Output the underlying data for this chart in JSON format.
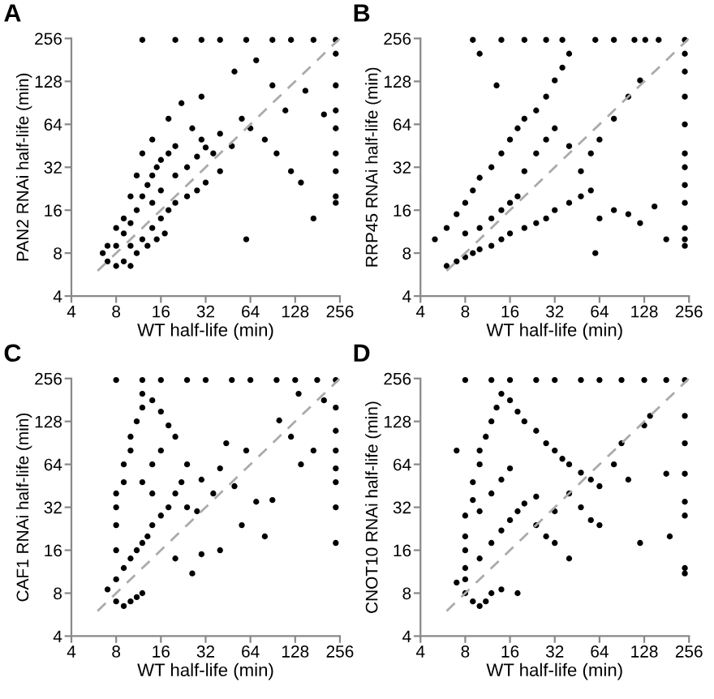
{
  "chart_data": [
    {
      "type": "scatter",
      "title": "A",
      "xlabel": "WT half-life (min)",
      "ylabel": "PAN2 RNAi half-life (min)",
      "log": "xy",
      "xlim": [
        4,
        256
      ],
      "ylim": [
        4,
        256
      ],
      "xticks": [
        4,
        8,
        16,
        32,
        64,
        128,
        256
      ],
      "yticks": [
        4,
        8,
        16,
        32,
        64,
        128,
        256
      ],
      "grid": false,
      "series": [
        {
          "type": "scatter",
          "color": "#000000",
          "marker": "circle",
          "x": [
            7,
            8,
            9,
            10,
            8,
            9,
            10,
            11,
            12,
            13,
            14,
            15,
            16,
            18,
            20,
            12,
            14,
            16,
            18,
            20,
            24,
            28,
            32,
            10,
            11,
            13,
            15,
            17,
            9,
            8,
            10,
            11,
            12,
            14,
            18,
            22,
            26,
            30,
            36,
            40,
            48,
            56,
            64,
            80,
            96,
            120,
            140,
            170,
            60,
            40,
            30,
            50,
            70,
            90,
            110,
            150,
            200,
            12,
            20,
            30,
            40,
            60,
            90,
            120,
            170,
            240,
            240,
            240,
            240,
            240,
            240,
            240,
            240,
            240,
            16,
            14,
            20,
            24,
            28,
            32,
            7,
            6.5
          ],
          "values": [
            7,
            6.5,
            7,
            6.5,
            9,
            11,
            13,
            16,
            20,
            24,
            28,
            32,
            36,
            40,
            45,
            10,
            12,
            14,
            16,
            18,
            20,
            22,
            25,
            9,
            8,
            9,
            10,
            11,
            14,
            12,
            20,
            28,
            40,
            50,
            70,
            90,
            60,
            50,
            40,
            55,
            45,
            70,
            60,
            50,
            40,
            30,
            25,
            14,
            10,
            30,
            100,
            150,
            180,
            120,
            80,
            110,
            75,
            250,
            250,
            250,
            250,
            250,
            250,
            250,
            250,
            250,
            200,
            120,
            80,
            60,
            40,
            30,
            20,
            18,
            22,
            18,
            28,
            32,
            38,
            44,
            9,
            8
          ]
        },
        {
          "type": "line",
          "color": "#aaaaaa",
          "line_style": "dashed",
          "x": [
            6,
            256
          ],
          "values": [
            6,
            256
          ]
        }
      ]
    },
    {
      "type": "scatter",
      "title": "B",
      "xlabel": "WT half-life (min)",
      "ylabel": "RRP45 RNAi half-life (min)",
      "log": "xy",
      "xlim": [
        4,
        256
      ],
      "ylim": [
        4,
        256
      ],
      "xticks": [
        4,
        8,
        16,
        32,
        64,
        128,
        256
      ],
      "yticks": [
        4,
        8,
        16,
        32,
        64,
        128,
        256
      ],
      "grid": false,
      "series": [
        {
          "type": "scatter",
          "color": "#000000",
          "marker": "circle",
          "x": [
            6,
            7,
            8,
            9,
            10,
            12,
            14,
            16,
            20,
            24,
            28,
            32,
            40,
            48,
            56,
            64,
            80,
            100,
            120,
            150,
            180,
            5,
            6,
            7,
            8,
            9,
            10,
            12,
            14,
            16,
            18,
            20,
            24,
            28,
            32,
            36,
            40,
            13,
            10,
            20,
            24,
            28,
            32,
            40,
            48,
            56,
            64,
            80,
            100,
            120,
            8,
            10,
            12,
            14,
            16,
            18,
            9,
            14,
            20,
            28,
            36,
            60,
            80,
            110,
            130,
            160,
            240,
            240,
            240,
            240,
            240,
            240,
            240,
            240,
            240,
            240,
            240,
            240,
            60
          ],
          "values": [
            6.5,
            7,
            7.5,
            8,
            8.5,
            9,
            10,
            11,
            12,
            13,
            14,
            16,
            18,
            20,
            22,
            14,
            16,
            15,
            13,
            17,
            10,
            10,
            12,
            15,
            18,
            22,
            27,
            32,
            40,
            50,
            60,
            70,
            80,
            100,
            130,
            160,
            200,
            120,
            200,
            30,
            40,
            50,
            60,
            45,
            30,
            40,
            50,
            70,
            100,
            130,
            11,
            12,
            14,
            16,
            18,
            20,
            250,
            250,
            250,
            250,
            250,
            250,
            250,
            250,
            250,
            250,
            250,
            200,
            150,
            100,
            64,
            40,
            32,
            24,
            18,
            12,
            10,
            9,
            8
          ]
        },
        {
          "type": "line",
          "color": "#aaaaaa",
          "line_style": "dashed",
          "x": [
            6,
            256
          ],
          "values": [
            6,
            256
          ]
        }
      ]
    },
    {
      "type": "scatter",
      "title": "C",
      "xlabel": "WT half-life (min)",
      "ylabel": "CAF1 RNAi half-life (min)",
      "log": "xy",
      "xlim": [
        4,
        256
      ],
      "ylim": [
        4,
        256
      ],
      "xticks": [
        4,
        8,
        16,
        32,
        64,
        128,
        256
      ],
      "yticks": [
        4,
        8,
        16,
        32,
        64,
        128,
        256
      ],
      "grid": false,
      "series": [
        {
          "type": "scatter",
          "color": "#000000",
          "marker": "circle",
          "x": [
            7,
            8,
            9,
            10,
            11,
            12,
            8,
            9,
            10,
            11,
            12,
            13,
            14,
            8,
            8,
            8,
            8,
            9,
            9,
            10,
            10,
            11,
            12,
            12,
            14,
            16,
            18,
            20,
            24,
            22,
            20,
            18,
            16,
            14,
            12,
            14,
            16,
            24,
            28,
            30,
            36,
            40,
            44,
            50,
            56,
            60,
            70,
            80,
            90,
            100,
            120,
            140,
            170,
            200,
            40,
            30,
            26,
            20,
            8,
            12,
            16,
            24,
            32,
            48,
            64,
            96,
            128,
            180,
            240,
            240,
            240,
            240,
            240,
            240,
            240,
            240,
            135
          ],
          "values": [
            8.5,
            7,
            6.5,
            7,
            7.5,
            8,
            10,
            12,
            14,
            16,
            18,
            20,
            24,
            16,
            24,
            32,
            40,
            48,
            64,
            80,
            100,
            128,
            160,
            200,
            180,
            150,
            120,
            100,
            64,
            48,
            40,
            32,
            28,
            40,
            48,
            64,
            80,
            32,
            30,
            50,
            40,
            60,
            90,
            45,
            24,
            80,
            35,
            20,
            36,
            130,
            100,
            64,
            80,
            180,
            16,
            15,
            11,
            14,
            250,
            250,
            250,
            250,
            250,
            250,
            250,
            250,
            250,
            250,
            250,
            160,
            110,
            80,
            60,
            48,
            32,
            18,
            200
          ]
        },
        {
          "type": "line",
          "color": "#aaaaaa",
          "line_style": "dashed",
          "x": [
            6,
            256
          ],
          "values": [
            6,
            256
          ]
        }
      ]
    },
    {
      "type": "scatter",
      "title": "D",
      "xlabel": "WT half-life (min)",
      "ylabel": "CNOT10 RNAi half-life (min)",
      "log": "xy",
      "xlim": [
        4,
        256
      ],
      "ylim": [
        4,
        256
      ],
      "xticks": [
        4,
        8,
        16,
        32,
        64,
        128,
        256
      ],
      "yticks": [
        4,
        8,
        16,
        32,
        64,
        128,
        256
      ],
      "grid": false,
      "series": [
        {
          "type": "scatter",
          "color": "#000000",
          "marker": "circle",
          "x": [
            7,
            8,
            9,
            10,
            11,
            12,
            14,
            18,
            8,
            8,
            8,
            8,
            8,
            9,
            9,
            10,
            10,
            11,
            12,
            13,
            14,
            16,
            18,
            20,
            24,
            28,
            32,
            36,
            40,
            48,
            56,
            64,
            10,
            12,
            14,
            16,
            18,
            20,
            24,
            10,
            12,
            14,
            16,
            24,
            28,
            32,
            40,
            32,
            40,
            48,
            56,
            64,
            80,
            90,
            100,
            128,
            140,
            180,
            190,
            120,
            7,
            8,
            12,
            16,
            24,
            32,
            48,
            64,
            90,
            128,
            180,
            240,
            240,
            240,
            240,
            240,
            240,
            240,
            240
          ],
          "values": [
            9.5,
            8,
            7,
            6.5,
            7,
            8,
            8.5,
            8,
            10,
            12,
            16,
            20,
            28,
            36,
            48,
            64,
            80,
            100,
            128,
            160,
            200,
            180,
            150,
            128,
            110,
            90,
            80,
            70,
            64,
            56,
            50,
            45,
            14,
            18,
            22,
            26,
            30,
            34,
            38,
            30,
            40,
            50,
            60,
            24,
            20,
            18,
            14,
            30,
            40,
            32,
            26,
            24,
            64,
            90,
            50,
            120,
            140,
            55,
            20,
            18,
            80,
            250,
            250,
            250,
            250,
            250,
            250,
            250,
            250,
            250,
            250,
            250,
            140,
            90,
            55,
            35,
            28,
            12,
            11
          ]
        },
        {
          "type": "line",
          "color": "#aaaaaa",
          "line_style": "dashed",
          "x": [
            6,
            256
          ],
          "values": [
            6,
            256
          ]
        }
      ]
    }
  ]
}
